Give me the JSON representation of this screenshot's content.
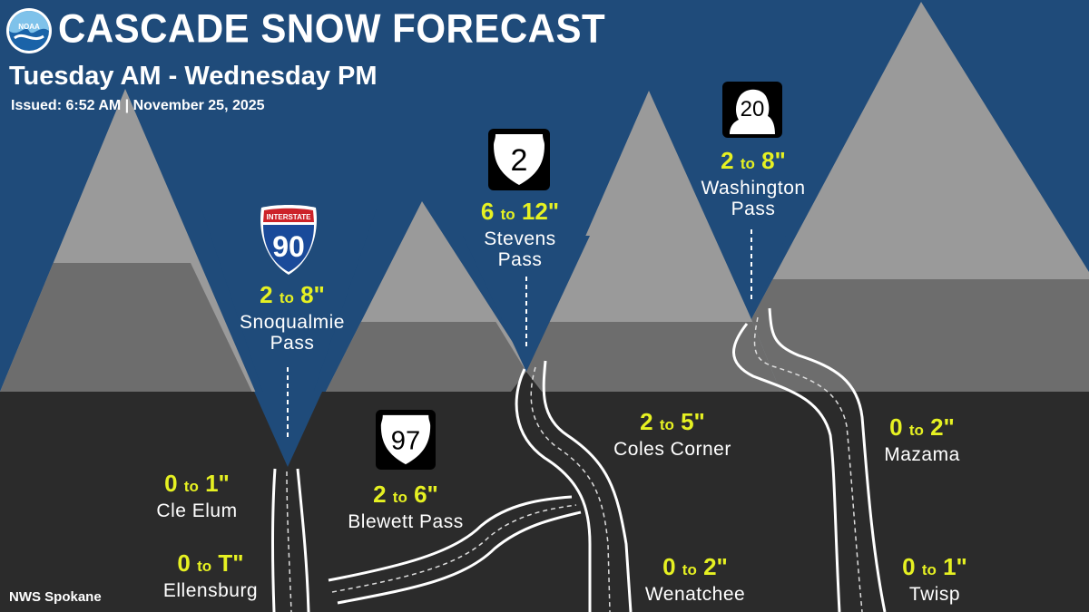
{
  "header": {
    "title": "CASCADE SNOW FORECAST",
    "subtitle": "Tuesday AM - Wednesday PM",
    "issued": "Issued: 6:52 AM | November 25, 2025"
  },
  "footer": {
    "office": "NWS Spokane"
  },
  "logo": {
    "text": "NOAA",
    "icon": "noaa-logo"
  },
  "colors": {
    "sky": "#1f4b7a",
    "ground": "#2b2b2b",
    "mountain_light": "#9a9a9a",
    "mountain_mid": "#6a6a6a",
    "mountain_dark": "#545454",
    "amount": "#e6f122",
    "road": "#ffffff"
  },
  "shields": {
    "i90": {
      "banner": "INTERSTATE",
      "number": "90",
      "icon": "interstate-shield-icon"
    },
    "us2": {
      "number": "2",
      "icon": "us-highway-shield-icon"
    },
    "us97": {
      "number": "97",
      "icon": "us-highway-shield-icon"
    },
    "sr20": {
      "number": "20",
      "icon": "washington-state-route-shield-icon"
    }
  },
  "forecasts": {
    "snoqualmie": {
      "low": "2",
      "to": "to",
      "high": "8\"",
      "place_line1": "Snoqualmie",
      "place_line2": "Pass"
    },
    "stevens": {
      "low": "6",
      "to": "to",
      "high": "12\"",
      "place_line1": "Stevens",
      "place_line2": "Pass"
    },
    "washington": {
      "low": "2",
      "to": "to",
      "high": "8\"",
      "place_line1": "Washington",
      "place_line2": "Pass"
    },
    "blewett": {
      "low": "2",
      "to": "to",
      "high": "6\"",
      "place": "Blewett Pass"
    },
    "cle_elum": {
      "low": "0",
      "to": "to",
      "high": "1\"",
      "place": "Cle Elum"
    },
    "ellensburg": {
      "low": "0",
      "to": "to",
      "high": "T\"",
      "place": "Ellensburg"
    },
    "coles_corner": {
      "low": "2",
      "to": "to",
      "high": "5\"",
      "place": "Coles Corner"
    },
    "wenatchee": {
      "low": "0",
      "to": "to",
      "high": "2\"",
      "place": "Wenatchee"
    },
    "mazama": {
      "low": "0",
      "to": "to",
      "high": "2\"",
      "place": "Mazama"
    },
    "twisp": {
      "low": "0",
      "to": "to",
      "high": "1\"",
      "place": "Twisp"
    }
  }
}
